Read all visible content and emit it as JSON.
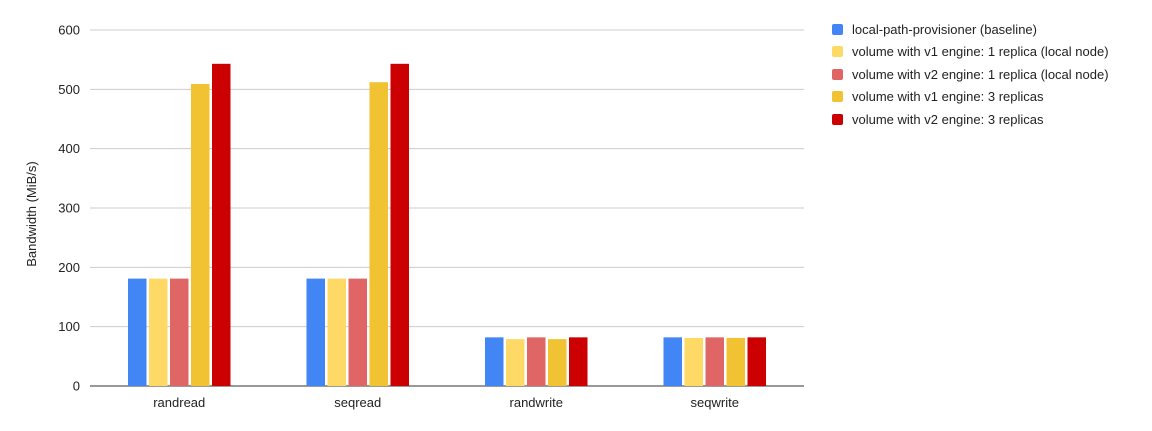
{
  "chart_data": {
    "type": "bar",
    "categories": [
      "randread",
      "seqread",
      "randwrite",
      "seqwrite"
    ],
    "series": [
      {
        "name": "local-path-provisioner (baseline)",
        "color": "#4285F4",
        "values": [
          181,
          181,
          82,
          82
        ]
      },
      {
        "name": "volume with v1 engine: 1 replica (local node)",
        "color": "#FFD966",
        "values": [
          181,
          181,
          79,
          81
        ]
      },
      {
        "name": "volume with v2 engine: 1 replica (local node)",
        "color": "#E06666",
        "values": [
          181,
          181,
          82,
          82
        ]
      },
      {
        "name": "volume with v1 engine: 3 replicas",
        "color": "#F1C232",
        "values": [
          509,
          512,
          79,
          81
        ]
      },
      {
        "name": "volume with v2 engine: 3 replicas",
        "color": "#CC0000",
        "values": [
          543,
          543,
          82,
          82
        ]
      }
    ],
    "title": "",
    "xlabel": "",
    "ylabel": "Bandwidth (MiB/s)",
    "ylim": [
      0,
      600
    ],
    "yticks": [
      0,
      100,
      200,
      300,
      400,
      500,
      600
    ],
    "grid": true,
    "legend_position": "right"
  }
}
